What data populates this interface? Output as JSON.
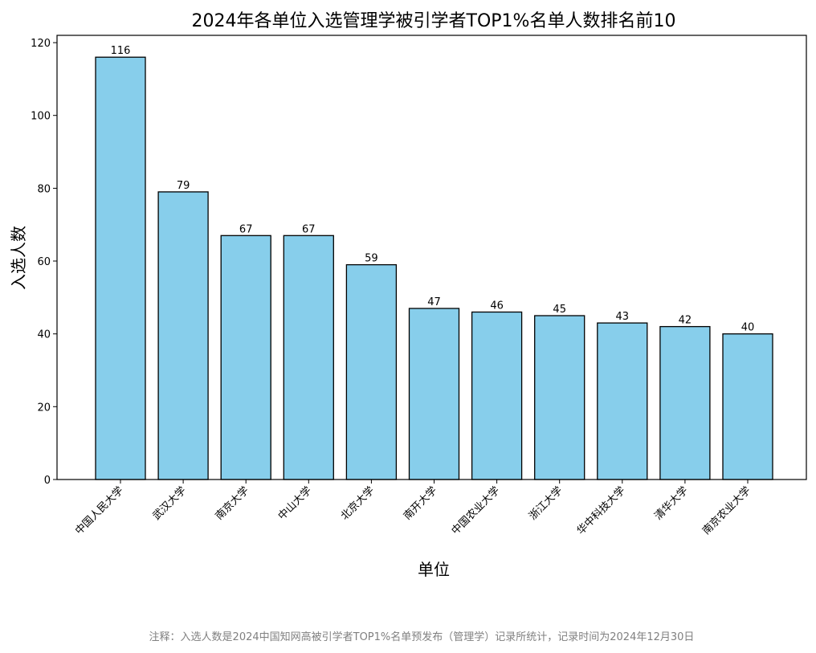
{
  "chart_data": {
    "type": "bar",
    "title": "2024年各单位入选管理学被引学者TOP1%名单人数排名前10",
    "xlabel": "单位",
    "ylabel": "入选人数",
    "categories": [
      "中国人民大学",
      "武汉大学",
      "南京大学",
      "中山大学",
      "北京大学",
      "南开大学",
      "中国农业大学",
      "浙江大学",
      "华中科技大学",
      "清华大学",
      "南京农业大学"
    ],
    "values": [
      116,
      79,
      67,
      67,
      59,
      47,
      46,
      45,
      43,
      42,
      40
    ],
    "value_labels": [
      "116",
      "79",
      "67",
      "67",
      "59",
      "47",
      "46",
      "45",
      "43",
      "42",
      "40"
    ],
    "ylim": [
      0,
      122
    ],
    "yticks": [
      0,
      20,
      40,
      60,
      80,
      100,
      120
    ],
    "ytick_labels": [
      "0",
      "20",
      "40",
      "60",
      "80",
      "100",
      "120"
    ],
    "grid": false,
    "bar_color": "#87ceeb",
    "edge_color": "#000000",
    "note": "注释：入选人数是2024中国知网高被引学者TOP1%名单预发布（管理学）记录所统计，记录时间为2024年12月30日"
  }
}
